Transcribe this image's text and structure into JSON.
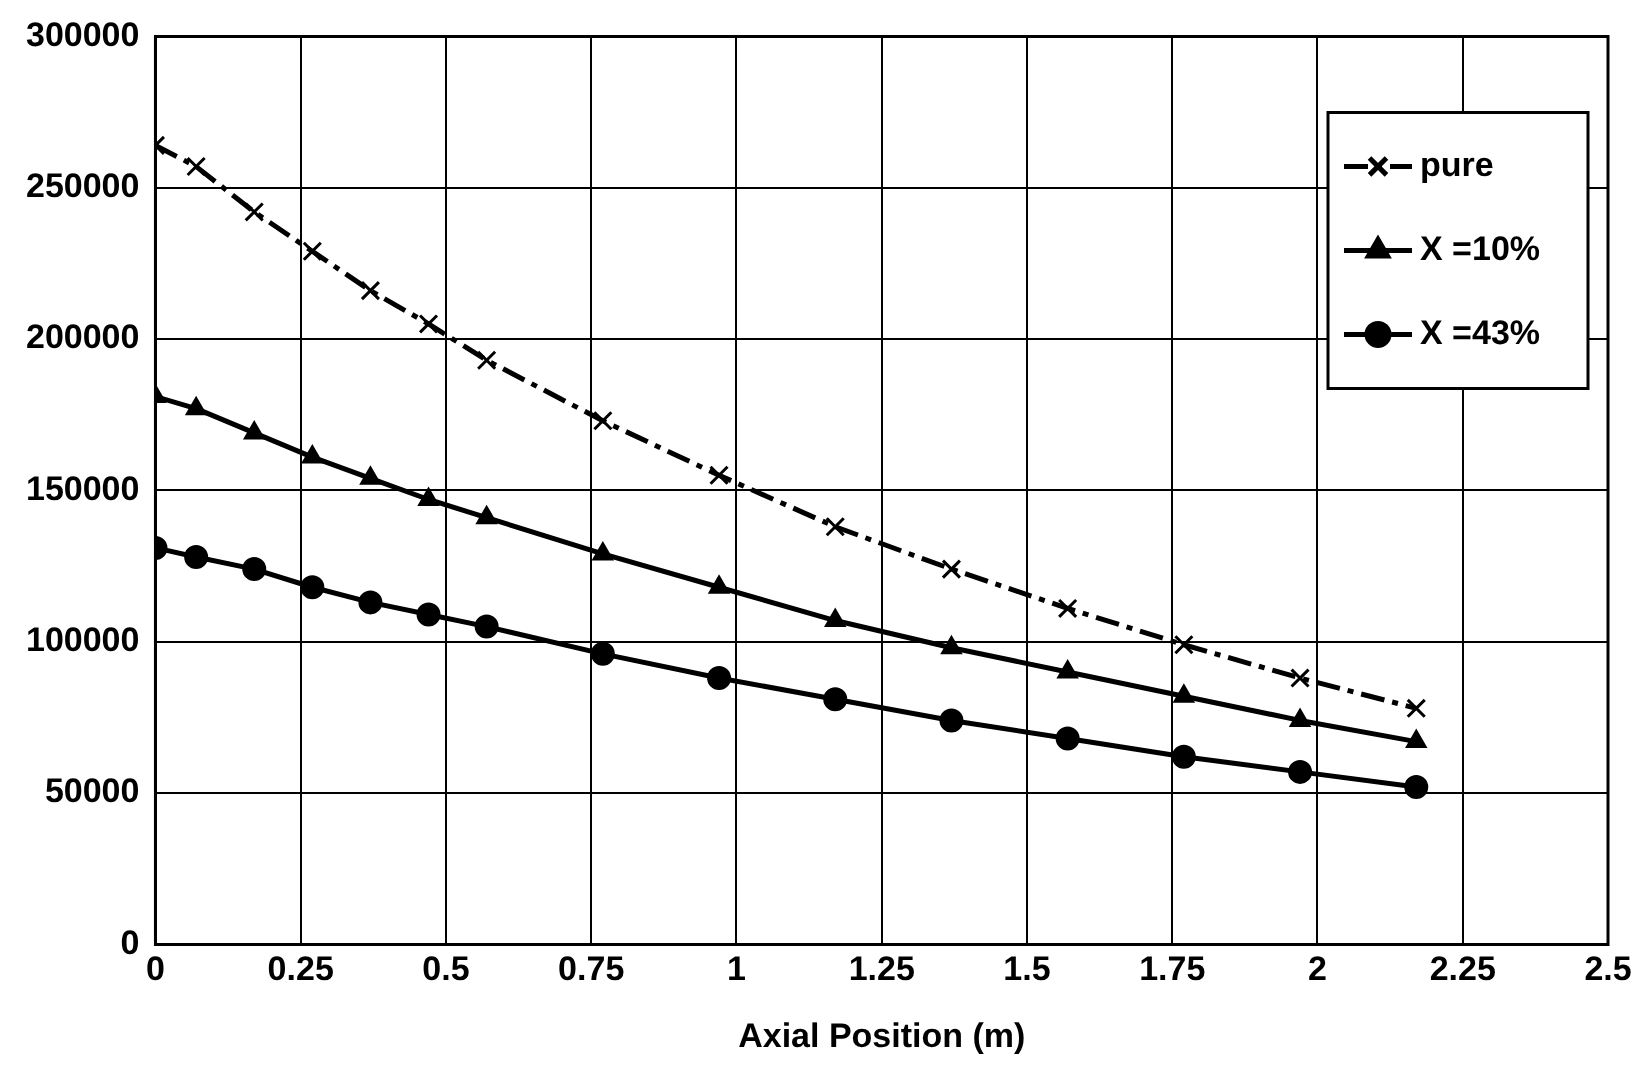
{
  "chart_data": {
    "type": "line",
    "xlabel": "Axial Position (m)",
    "x": [
      0,
      0.07,
      0.17,
      0.27,
      0.37,
      0.47,
      0.57,
      0.77,
      0.97,
      1.17,
      1.37,
      1.57,
      1.77,
      1.97,
      2.17
    ],
    "series": [
      {
        "name": "pure",
        "color": "#000000",
        "marker": "cross",
        "line_style": "dashed",
        "values": [
          264000,
          257000,
          242000,
          229000,
          216000,
          205000,
          193000,
          173000,
          155000,
          138000,
          124000,
          111000,
          99000,
          88000,
          78000
        ]
      },
      {
        "name": "X =10%",
        "color": "#000000",
        "marker": "triangle",
        "line_style": "solid",
        "values": [
          181000,
          177000,
          169000,
          161000,
          154000,
          147000,
          141000,
          129000,
          118000,
          107000,
          98000,
          90000,
          82000,
          74000,
          67000
        ]
      },
      {
        "name": "X =43%",
        "color": "#000000",
        "marker": "circle",
        "line_style": "solid",
        "values": [
          131000,
          128000,
          124000,
          118000,
          113000,
          109000,
          105000,
          96000,
          88000,
          81000,
          74000,
          68000,
          62000,
          57000,
          52000
        ]
      }
    ],
    "xlim": [
      0,
      2.5
    ],
    "xticks": [
      0,
      0.25,
      0.5,
      0.75,
      1,
      1.25,
      1.5,
      1.75,
      2,
      2.25,
      2.5
    ],
    "ylim": [
      0,
      300000
    ],
    "yticks": [
      0,
      50000,
      100000,
      150000,
      200000,
      250000,
      300000
    ],
    "grid": true,
    "legend": "top right"
  }
}
